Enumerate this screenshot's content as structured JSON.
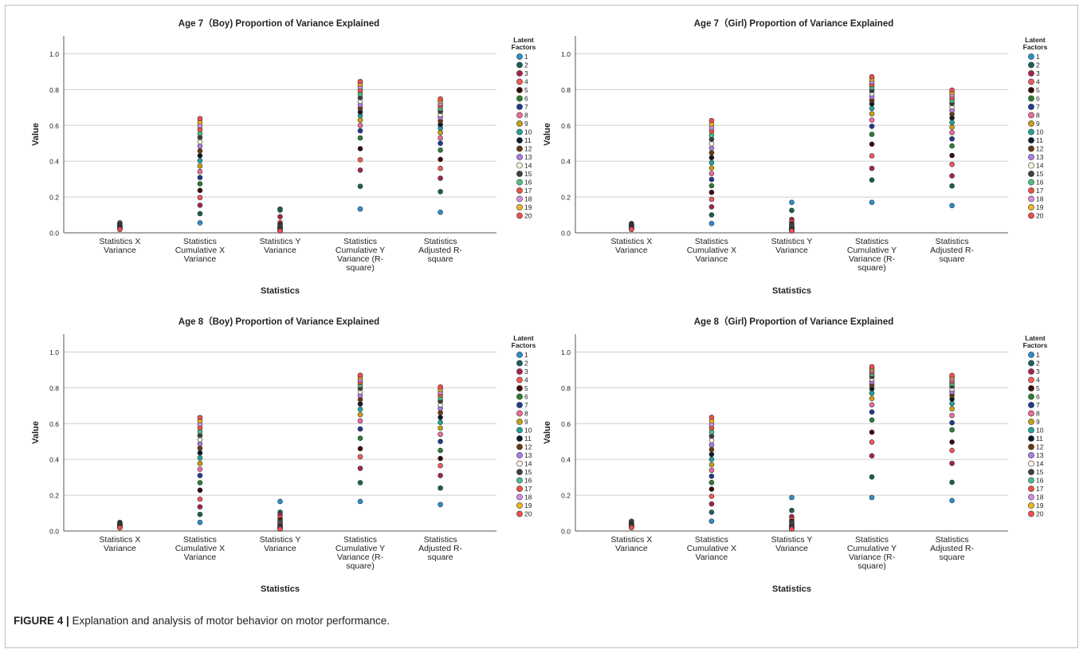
{
  "caption": {
    "label": "FIGURE 4 |",
    "text": " Explanation and analysis of motor behavior on motor performance."
  },
  "legend_title": [
    "Latent",
    "Factors"
  ],
  "colors": [
    "#2a8fd0",
    "#1d5e5a",
    "#a8224c",
    "#f25a5a",
    "#3c0a0a",
    "#2e7d32",
    "#1f3a93",
    "#f06aa0",
    "#c9a016",
    "#1fa59a",
    "#0d1b2a",
    "#6b3a12",
    "#b07be8",
    "#f7f3dd",
    "#404040",
    "#4fbf88",
    "#e8553e",
    "#d98ce0",
    "#f2b51c",
    "#ef4f4f"
  ],
  "chart_data": [
    {
      "type": "scatter",
      "title": "Age 7（Boy)      Proportion of Variance Explained",
      "xlabel": "Statistics",
      "ylabel": "Value",
      "ylim": [
        0,
        1.1
      ],
      "yticks": [
        "0.0",
        "0.2",
        "0.4",
        "0.6",
        "0.8",
        "1.0"
      ],
      "categories": [
        [
          "Statistics X",
          "Variance"
        ],
        [
          "Statistics",
          "Cumulative X",
          "Variance"
        ],
        [
          "Statistics Y",
          "Variance"
        ],
        [
          "Statistics",
          "Cumulative Y",
          "Variance (R-",
          "square)"
        ],
        [
          "Statistics",
          "Adjusted R-",
          "square"
        ]
      ],
      "legend": [
        "1",
        "2",
        "3",
        "4",
        "5",
        "6",
        "7",
        "8",
        "9",
        "10",
        "11",
        "12",
        "13",
        "14",
        "15",
        "16",
        "17",
        "18",
        "19",
        "20"
      ],
      "grid": true,
      "legend_position": "right",
      "values": [
        [
          0.056,
          0.051,
          0.047,
          0.043,
          0.04,
          0.037,
          0.035,
          0.033,
          0.031,
          0.03,
          0.028,
          0.027,
          0.026,
          0.025,
          0.024,
          0.023,
          0.022,
          0.021,
          0.02,
          0.019
        ],
        [
          0.056,
          0.107,
          0.154,
          0.197,
          0.237,
          0.274,
          0.309,
          0.342,
          0.373,
          0.403,
          0.431,
          0.458,
          0.484,
          0.509,
          0.533,
          0.556,
          0.578,
          0.599,
          0.619,
          0.638
        ],
        [
          0.133,
          0.127,
          0.09,
          0.058,
          0.048,
          0.04,
          0.035,
          0.031,
          0.028,
          0.025,
          0.023,
          0.021,
          0.019,
          0.017,
          0.016,
          0.015,
          0.014,
          0.013,
          0.012,
          0.011
        ],
        [
          0.133,
          0.26,
          0.35,
          0.408,
          0.47,
          0.53,
          0.57,
          0.6,
          0.63,
          0.655,
          0.675,
          0.695,
          0.715,
          0.735,
          0.755,
          0.775,
          0.795,
          0.815,
          0.83,
          0.845
        ],
        [
          0.115,
          0.23,
          0.305,
          0.36,
          0.41,
          0.462,
          0.5,
          0.53,
          0.56,
          0.585,
          0.605,
          0.625,
          0.645,
          0.662,
          0.678,
          0.694,
          0.71,
          0.724,
          0.737,
          0.748
        ]
      ]
    },
    {
      "type": "scatter",
      "title": "Age 7（Girl)      Proportion of Variance Explained",
      "xlabel": "Statistics",
      "ylabel": "Value",
      "ylim": [
        0,
        1.1
      ],
      "yticks": [
        "0.0",
        "0.2",
        "0.4",
        "0.6",
        "0.8",
        "1.0"
      ],
      "categories": [
        [
          "Statistics X",
          "Variance"
        ],
        [
          "Statistics",
          "Cumulative X",
          "Variance"
        ],
        [
          "Statistics Y",
          "Variance"
        ],
        [
          "Statistics",
          "Cumulative Y",
          "Variance (R-",
          "square)"
        ],
        [
          "Statistics",
          "Adjusted R-",
          "square"
        ]
      ],
      "legend": [
        "1",
        "2",
        "3",
        "4",
        "5",
        "6",
        "7",
        "8",
        "9",
        "10",
        "11",
        "12",
        "13",
        "14",
        "15",
        "16",
        "17",
        "18",
        "19",
        "20"
      ],
      "grid": true,
      "legend_position": "right",
      "values": [
        [
          0.052,
          0.048,
          0.045,
          0.042,
          0.039,
          0.037,
          0.035,
          0.033,
          0.031,
          0.03,
          0.028,
          0.027,
          0.026,
          0.025,
          0.024,
          0.023,
          0.022,
          0.021,
          0.02,
          0.019
        ],
        [
          0.052,
          0.1,
          0.145,
          0.187,
          0.226,
          0.263,
          0.298,
          0.331,
          0.362,
          0.392,
          0.42,
          0.447,
          0.473,
          0.498,
          0.522,
          0.545,
          0.567,
          0.588,
          0.608,
          0.627
        ],
        [
          0.17,
          0.125,
          0.075,
          0.06,
          0.05,
          0.043,
          0.038,
          0.033,
          0.029,
          0.026,
          0.023,
          0.021,
          0.019,
          0.017,
          0.016,
          0.015,
          0.014,
          0.013,
          0.012,
          0.011
        ],
        [
          0.17,
          0.295,
          0.36,
          0.43,
          0.495,
          0.55,
          0.595,
          0.63,
          0.665,
          0.695,
          0.72,
          0.74,
          0.76,
          0.778,
          0.795,
          0.812,
          0.828,
          0.843,
          0.858,
          0.872
        ],
        [
          0.152,
          0.262,
          0.318,
          0.382,
          0.432,
          0.485,
          0.525,
          0.56,
          0.59,
          0.617,
          0.642,
          0.664,
          0.685,
          0.704,
          0.722,
          0.739,
          0.755,
          0.77,
          0.784,
          0.797
        ]
      ]
    },
    {
      "type": "scatter",
      "title": "Age 8（Boy)      Proportion of Variance Explained",
      "xlabel": "Statistics",
      "ylabel": "Value",
      "ylim": [
        0,
        1.1
      ],
      "yticks": [
        "0.0",
        "0.2",
        "0.4",
        "0.6",
        "0.8",
        "1.0"
      ],
      "categories": [
        [
          "Statistics X",
          "Variance"
        ],
        [
          "Statistics",
          "Cumulative X",
          "Variance"
        ],
        [
          "Statistics Y",
          "Variance"
        ],
        [
          "Statistics",
          "Cumulative Y",
          "Variance (R-",
          "square)"
        ],
        [
          "Statistics",
          "Adjusted R-",
          "square"
        ]
      ],
      "legend": [
        "1",
        "2",
        "3",
        "4",
        "5",
        "6",
        "7",
        "8",
        "9",
        "10",
        "11",
        "12",
        "13",
        "14",
        "15",
        "16",
        "17",
        "18",
        "19",
        "20"
      ],
      "grid": true,
      "legend_position": "right",
      "values": [
        [
          0.048,
          0.045,
          0.042,
          0.039,
          0.037,
          0.035,
          0.033,
          0.031,
          0.03,
          0.028,
          0.027,
          0.026,
          0.025,
          0.024,
          0.023,
          0.022,
          0.021,
          0.02,
          0.019,
          0.018
        ],
        [
          0.048,
          0.093,
          0.135,
          0.178,
          0.228,
          0.27,
          0.31,
          0.345,
          0.378,
          0.408,
          0.436,
          0.462,
          0.487,
          0.511,
          0.534,
          0.556,
          0.577,
          0.597,
          0.616,
          0.634
        ],
        [
          0.165,
          0.105,
          0.09,
          0.075,
          0.062,
          0.052,
          0.045,
          0.039,
          0.034,
          0.03,
          0.027,
          0.024,
          0.021,
          0.019,
          0.017,
          0.015,
          0.014,
          0.013,
          0.012,
          0.011
        ],
        [
          0.165,
          0.27,
          0.35,
          0.415,
          0.46,
          0.518,
          0.57,
          0.615,
          0.65,
          0.68,
          0.71,
          0.735,
          0.758,
          0.778,
          0.797,
          0.814,
          0.83,
          0.845,
          0.858,
          0.87
        ],
        [
          0.148,
          0.24,
          0.31,
          0.365,
          0.405,
          0.45,
          0.5,
          0.54,
          0.575,
          0.607,
          0.635,
          0.661,
          0.685,
          0.706,
          0.725,
          0.743,
          0.76,
          0.776,
          0.791,
          0.805
        ]
      ]
    },
    {
      "type": "scatter",
      "title": "Age 8（Girl)      Proportion of Variance Explained",
      "xlabel": "Statistics",
      "ylabel": "Value",
      "ylim": [
        0,
        1.1
      ],
      "yticks": [
        "0.0",
        "0.2",
        "0.4",
        "0.6",
        "0.8",
        "1.0"
      ],
      "categories": [
        [
          "Statistics X",
          "Variance"
        ],
        [
          "Statistics",
          "Cumulative X",
          "Variance"
        ],
        [
          "Statistics Y",
          "Variance"
        ],
        [
          "Statistics",
          "Cumulative Y",
          "Variance (R-",
          "square)"
        ],
        [
          "Statistics",
          "Adjusted R-",
          "square"
        ]
      ],
      "legend": [
        "1",
        "2",
        "3",
        "4",
        "5",
        "6",
        "7",
        "8",
        "9",
        "10",
        "11",
        "12",
        "13",
        "14",
        "15",
        "16",
        "17",
        "18",
        "19",
        "20"
      ],
      "grid": true,
      "legend_position": "right",
      "values": [
        [
          0.055,
          0.05,
          0.046,
          0.043,
          0.04,
          0.037,
          0.035,
          0.033,
          0.031,
          0.03,
          0.028,
          0.027,
          0.026,
          0.025,
          0.024,
          0.023,
          0.022,
          0.021,
          0.02,
          0.019
        ],
        [
          0.055,
          0.105,
          0.151,
          0.194,
          0.234,
          0.271,
          0.306,
          0.339,
          0.37,
          0.4,
          0.428,
          0.455,
          0.481,
          0.506,
          0.53,
          0.553,
          0.575,
          0.596,
          0.616,
          0.635
        ],
        [
          0.187,
          0.115,
          0.08,
          0.065,
          0.055,
          0.047,
          0.041,
          0.036,
          0.032,
          0.028,
          0.025,
          0.022,
          0.02,
          0.018,
          0.016,
          0.015,
          0.014,
          0.013,
          0.012,
          0.011
        ],
        [
          0.187,
          0.302,
          0.42,
          0.497,
          0.552,
          0.62,
          0.665,
          0.705,
          0.74,
          0.77,
          0.795,
          0.815,
          0.833,
          0.849,
          0.863,
          0.876,
          0.888,
          0.899,
          0.909,
          0.918
        ],
        [
          0.17,
          0.272,
          0.378,
          0.45,
          0.497,
          0.565,
          0.605,
          0.645,
          0.682,
          0.712,
          0.737,
          0.758,
          0.777,
          0.794,
          0.809,
          0.823,
          0.836,
          0.848,
          0.859,
          0.869
        ]
      ]
    }
  ]
}
